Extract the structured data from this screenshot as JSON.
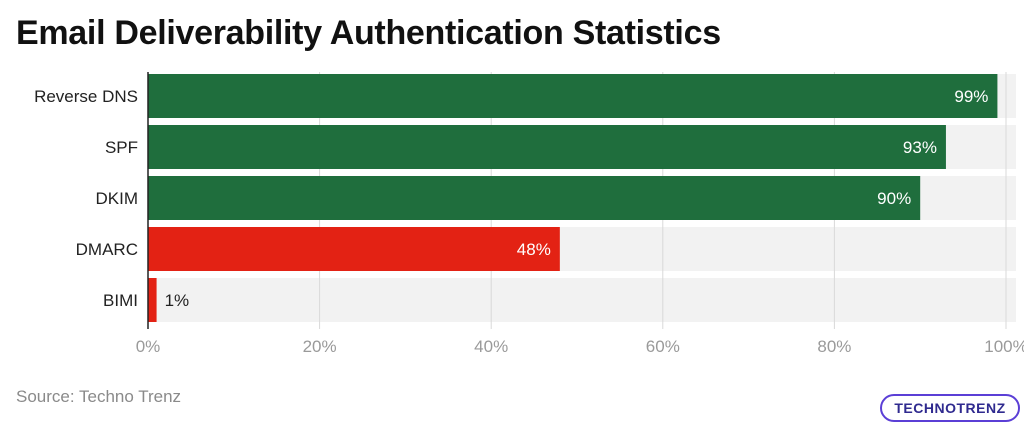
{
  "title": "Email Deliverability Authentication Statistics",
  "source": "Source: Techno Trenz",
  "logo_text": "TECHNOTRENZ",
  "colors": {
    "green": "#1f6e3d",
    "red": "#e32214",
    "track": "#f2f2f2",
    "grid": "#d9d9d9"
  },
  "chart_data": {
    "type": "bar",
    "orientation": "horizontal",
    "categories": [
      "Reverse DNS",
      "SPF",
      "DKIM",
      "DMARC",
      "BIMI"
    ],
    "values": [
      99,
      93,
      90,
      48,
      1
    ],
    "value_labels": [
      "99%",
      "93%",
      "90%",
      "48%",
      "1%"
    ],
    "bar_colors": [
      "#1f6e3d",
      "#1f6e3d",
      "#1f6e3d",
      "#e32214",
      "#e32214"
    ],
    "x_ticks": [
      "0%",
      "20%",
      "40%",
      "60%",
      "80%",
      "100%"
    ],
    "xlim": [
      0,
      100
    ],
    "grid": true,
    "xlabel": "",
    "ylabel": ""
  }
}
